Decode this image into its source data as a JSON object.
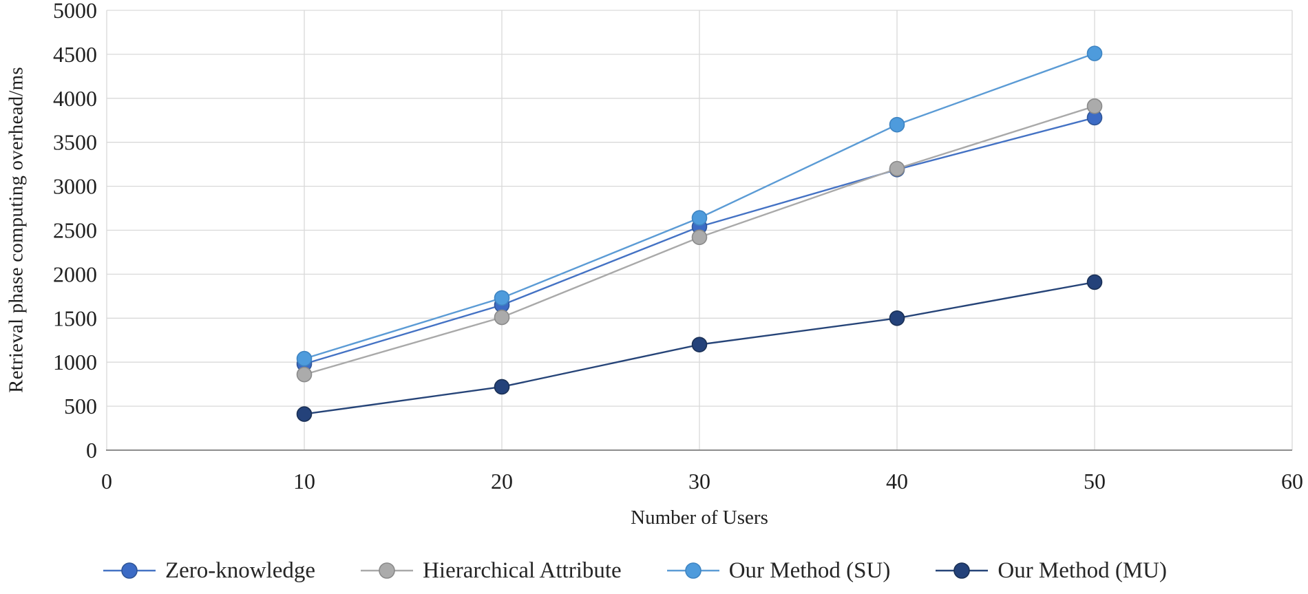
{
  "chart_data": {
    "type": "line",
    "x": [
      10,
      20,
      30,
      40,
      50
    ],
    "series": [
      {
        "name": "Zero-knowledge",
        "color": "#4472C4",
        "marker_fill": "#3C6BC5",
        "marker_stroke": "#2F5597",
        "values": [
          980,
          1650,
          2540,
          3190,
          3780
        ]
      },
      {
        "name": "Hierarchical Attribute",
        "color": "#A9A9A9",
        "marker_fill": "#ABABAB",
        "marker_stroke": "#8A8A8A",
        "values": [
          860,
          1510,
          2420,
          3200,
          3910
        ]
      },
      {
        "name": "Our Method (SU)",
        "color": "#5B9BD5",
        "marker_fill": "#4E9BDC",
        "marker_stroke": "#3E84C2",
        "values": [
          1040,
          1730,
          2640,
          3700,
          4510
        ]
      },
      {
        "name": "Our Method (MU)",
        "color": "#264478",
        "marker_fill": "#24427A",
        "marker_stroke": "#1A3055",
        "values": [
          410,
          720,
          1200,
          1500,
          1910
        ]
      }
    ],
    "xlabel": "Number of Users",
    "ylabel": "Retrieval phase computing overhead/ms",
    "xlim": [
      0,
      60
    ],
    "ylim": [
      0,
      5000
    ],
    "xticks": [
      0,
      10,
      20,
      30,
      40,
      50,
      60
    ],
    "yticks": [
      0,
      500,
      1000,
      1500,
      2000,
      2500,
      3000,
      3500,
      4000,
      4500,
      5000
    ],
    "grid": "on",
    "legend_position": "bottom"
  },
  "colors": {
    "grid": "#D9D9D9",
    "axis_line": "#8C8C8C",
    "text": "#1F1F1F",
    "background": "#FFFFFF"
  }
}
